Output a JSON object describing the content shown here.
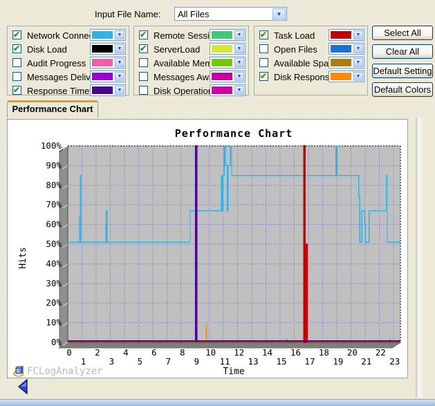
{
  "header": {
    "input_file_label": "Input File Name:",
    "input_file_value": "All Files"
  },
  "series_groups": [
    {
      "items": [
        {
          "label": "Network Connections",
          "checked": true,
          "color": "#2eb2e8"
        },
        {
          "label": "Disk Load",
          "checked": true,
          "color": "#000000"
        },
        {
          "label": "Audit Progress",
          "checked": false,
          "color": "#f05fa8"
        },
        {
          "label": "Messages Delivered",
          "checked": false,
          "color": "#9c00d4"
        },
        {
          "label": "Response Time",
          "checked": true,
          "color": "#4b0096"
        }
      ]
    },
    {
      "items": [
        {
          "label": "Remote Session",
          "checked": true,
          "color": "#3ec874"
        },
        {
          "label": "ServerLoad",
          "checked": true,
          "color": "#d8e830"
        },
        {
          "label": "Available Memory",
          "checked": false,
          "color": "#78c800"
        },
        {
          "label": "Messages Awaiting",
          "checked": false,
          "color": "#c800a0"
        },
        {
          "label": "Disk Operations",
          "checked": false,
          "color": "#d400a8"
        }
      ]
    },
    {
      "items": [
        {
          "label": "Task Load",
          "checked": true,
          "color": "#c40000"
        },
        {
          "label": "Open Files",
          "checked": false,
          "color": "#1874d2"
        },
        {
          "label": "Available Space",
          "checked": false,
          "color": "#aa7d0f"
        },
        {
          "label": "Disk Response Time",
          "checked": true,
          "color": "#ff8c00"
        }
      ]
    }
  ],
  "buttons": [
    {
      "label": "Select All"
    },
    {
      "label": "Clear All"
    },
    {
      "label": "Default Setting"
    },
    {
      "label": "Default Colors"
    }
  ],
  "tab_label": "Performance Chart",
  "watermark": "FCLogAnalyzer",
  "chart_data": {
    "type": "line",
    "title": "Performance Chart",
    "xlabel": "Time",
    "ylabel": "Hits",
    "xlim": [
      0,
      23.5
    ],
    "ylim": [
      0,
      100
    ],
    "x_ticks": [
      0,
      1,
      2,
      3,
      4,
      5,
      6,
      7,
      8,
      9,
      10,
      11,
      12,
      13,
      14,
      15,
      16,
      17,
      18,
      19,
      20,
      21,
      22,
      23
    ],
    "y_ticks": [
      "0%",
      "10%",
      "20%",
      "30%",
      "40%",
      "50%",
      "60%",
      "70%",
      "80%",
      "90%",
      "100%"
    ],
    "grid": true,
    "plot_bg": "#c0c0c0",
    "grid_color": "#6b6bd0",
    "legend_position": "none",
    "series": [
      {
        "name": "Disk Response Time",
        "color": "#ff8c00",
        "width": 1.3,
        "points": [
          [
            0,
            0.4
          ],
          [
            9.77,
            0.4
          ],
          [
            9.77,
            9
          ],
          [
            9.82,
            9
          ],
          [
            9.82,
            0.4
          ],
          [
            15.45,
            0.4
          ],
          [
            15.45,
            1.8
          ],
          [
            15.49,
            1.8
          ],
          [
            15.49,
            0.4
          ],
          [
            22.74,
            0.4
          ],
          [
            22.74,
            1.8
          ],
          [
            22.78,
            1.8
          ],
          [
            22.78,
            0.4
          ],
          [
            23.5,
            0.4
          ]
        ]
      },
      {
        "name": "Network Connections",
        "color": "#2eb2e8",
        "width": 1.4,
        "points": [
          [
            0,
            51
          ],
          [
            0.85,
            51
          ],
          [
            0.85,
            64
          ],
          [
            0.88,
            64
          ],
          [
            0.88,
            85
          ],
          [
            0.92,
            85
          ],
          [
            0.92,
            51
          ],
          [
            2.7,
            51
          ],
          [
            2.7,
            60
          ],
          [
            2.73,
            60
          ],
          [
            2.73,
            67
          ],
          [
            2.77,
            67
          ],
          [
            2.77,
            51
          ],
          [
            8.65,
            51
          ],
          [
            8.65,
            67
          ],
          [
            10.85,
            67
          ],
          [
            10.85,
            85
          ],
          [
            10.92,
            85
          ],
          [
            10.92,
            67
          ],
          [
            10.97,
            67
          ],
          [
            10.97,
            85
          ],
          [
            11.05,
            85
          ],
          [
            11.05,
            100
          ],
          [
            11.12,
            100
          ],
          [
            11.12,
            90
          ],
          [
            11.28,
            90
          ],
          [
            11.28,
            67
          ],
          [
            11.32,
            67
          ],
          [
            11.32,
            90
          ],
          [
            11.5,
            90
          ],
          [
            11.5,
            100
          ],
          [
            11.58,
            100
          ],
          [
            11.58,
            85
          ],
          [
            18.95,
            85
          ],
          [
            18.95,
            100
          ],
          [
            19.02,
            100
          ],
          [
            19.02,
            85
          ],
          [
            20.55,
            85
          ],
          [
            20.55,
            74
          ],
          [
            20.63,
            74
          ],
          [
            20.63,
            51
          ],
          [
            20.78,
            51
          ],
          [
            20.78,
            67
          ],
          [
            20.98,
            67
          ],
          [
            20.98,
            60
          ],
          [
            21.03,
            60
          ],
          [
            21.03,
            51
          ],
          [
            21.28,
            51
          ],
          [
            21.28,
            67
          ],
          [
            22.5,
            67
          ],
          [
            22.5,
            85
          ],
          [
            22.57,
            85
          ],
          [
            22.57,
            51
          ],
          [
            23.5,
            51
          ]
        ]
      },
      {
        "name": "Task Load",
        "color": "#c40000",
        "width": 2.2,
        "points": [
          [
            16.68,
            0
          ],
          [
            16.68,
            100
          ],
          [
            16.76,
            100
          ],
          [
            16.76,
            0
          ],
          [
            16.86,
            0
          ],
          [
            16.86,
            50
          ],
          [
            16.89,
            50
          ],
          [
            16.89,
            0
          ]
        ]
      },
      {
        "name": "Response Time",
        "color": "#4b0096",
        "width": 2,
        "points": [
          [
            0,
            0.7
          ],
          [
            9.03,
            0.7
          ],
          [
            9.03,
            100
          ],
          [
            9.1,
            100
          ],
          [
            9.1,
            0.7
          ],
          [
            23.5,
            0.7
          ]
        ]
      }
    ]
  }
}
